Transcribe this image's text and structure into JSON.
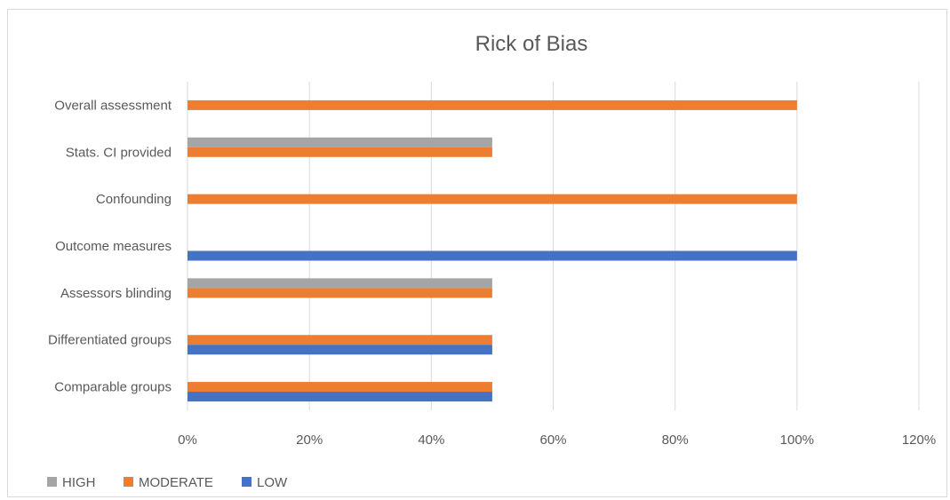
{
  "chart_data": {
    "type": "bar",
    "orientation": "horizontal",
    "title": "Rick of Bias",
    "categories": [
      "Overall assessment",
      "Stats. CI provided",
      "Confounding",
      "Outcome measures",
      "Assessors blinding",
      "Differentiated groups",
      "Comparable groups"
    ],
    "series": [
      {
        "name": "HIGH",
        "color": "#a5a5a5",
        "values": [
          0,
          50,
          0,
          0,
          50,
          0,
          0
        ]
      },
      {
        "name": "MODERATE",
        "color": "#ed7d31",
        "values": [
          100,
          50,
          100,
          0,
          50,
          50,
          50
        ]
      },
      {
        "name": "LOW",
        "color": "#4472c4",
        "values": [
          0,
          0,
          0,
          100,
          0,
          50,
          50
        ]
      }
    ],
    "x_ticks": [
      "0%",
      "20%",
      "40%",
      "60%",
      "80%",
      "100%",
      "120%"
    ],
    "xlim": [
      0,
      120
    ],
    "grid": "vertical",
    "legend_position": "bottom-left"
  }
}
